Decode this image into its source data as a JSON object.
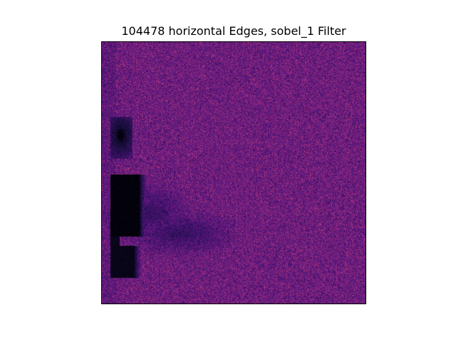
{
  "figure": {
    "title": "104478 horizontal Edges, sobel_1 Filter"
  },
  "image": {
    "colormap": "magma",
    "colors": {
      "background": "#ffffff",
      "frame": "#000000",
      "dark": "#000004",
      "deep_purple": "#3b0f70",
      "purple": "#6b1d7e",
      "magenta": "#8c2981",
      "rose": "#b73779",
      "salmon": "#de4968"
    }
  }
}
